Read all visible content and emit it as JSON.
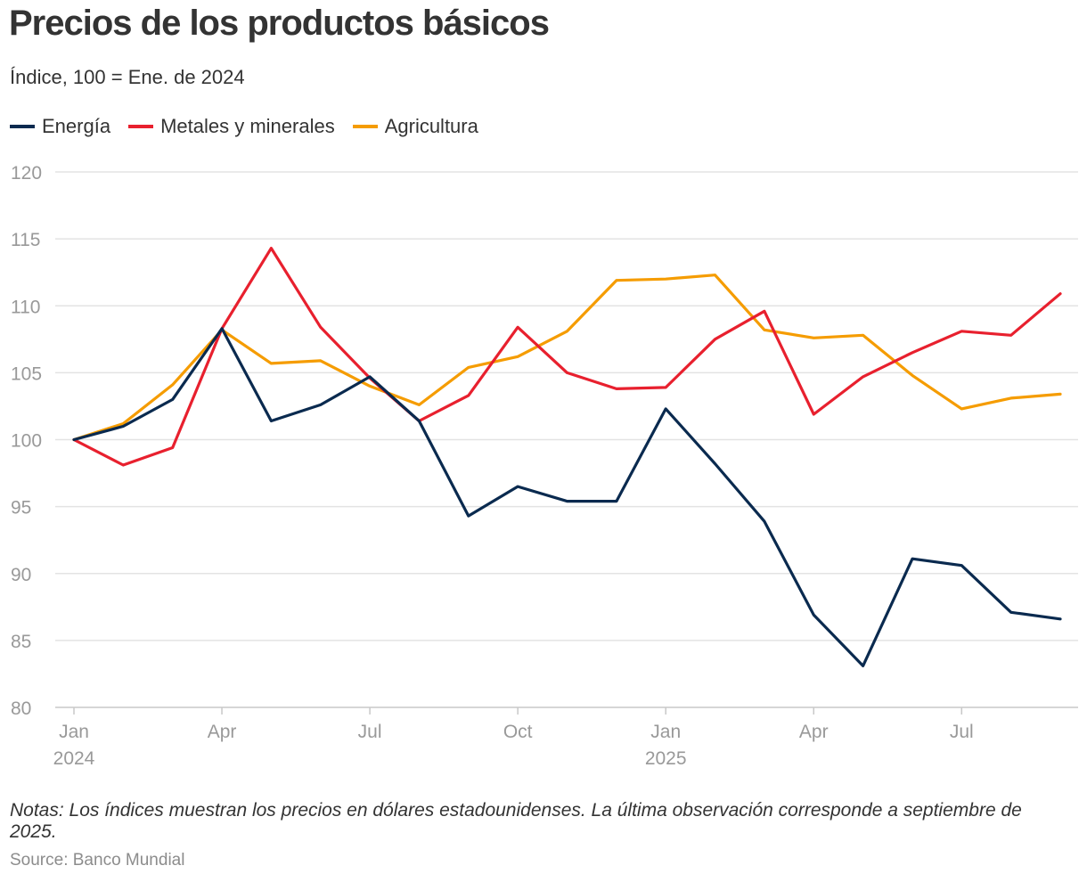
{
  "title": "Precios de los productos básicos",
  "subtitle": "Índice, 100 = Ene. de 2024",
  "notes": "Notas: Los índices muestran los precios en dólares estadounidenses. La última observación corresponde a septiembre de 2025.",
  "source": "Source: Banco Mundial",
  "chart_data": {
    "type": "line",
    "title": "Precios de los productos básicos",
    "ylabel": "Índice, 100 = Ene. de 2024",
    "xlabel": "",
    "ylim": [
      80,
      120
    ],
    "yticks": [
      80,
      85,
      90,
      95,
      100,
      105,
      110,
      115,
      120
    ],
    "grid": true,
    "legend_position": "top-left",
    "x": [
      "2024-01",
      "2024-02",
      "2024-03",
      "2024-04",
      "2024-05",
      "2024-06",
      "2024-07",
      "2024-08",
      "2024-09",
      "2024-10",
      "2024-11",
      "2024-12",
      "2025-01",
      "2025-02",
      "2025-03",
      "2025-04",
      "2025-05",
      "2025-06",
      "2025-07",
      "2025-08",
      "2025-09"
    ],
    "xtick_labels": [
      {
        "index": 0,
        "month": "Jan",
        "year": "2024"
      },
      {
        "index": 3,
        "month": "Apr",
        "year": ""
      },
      {
        "index": 6,
        "month": "Jul",
        "year": ""
      },
      {
        "index": 9,
        "month": "Oct",
        "year": ""
      },
      {
        "index": 12,
        "month": "Jan",
        "year": "2025"
      },
      {
        "index": 15,
        "month": "Apr",
        "year": ""
      },
      {
        "index": 18,
        "month": "Jul",
        "year": ""
      }
    ],
    "series": [
      {
        "name": "Energía",
        "color": "#0a2a4f",
        "values": [
          100,
          101,
          103,
          108.3,
          101.4,
          102.6,
          104.7,
          101.4,
          94.3,
          96.5,
          95.4,
          95.4,
          102.3,
          98.2,
          93.9,
          86.9,
          83.1,
          91.1,
          90.6,
          87.1,
          86.6
        ]
      },
      {
        "name": "Metales y minerales",
        "color": "#e8202e",
        "values": [
          100,
          98.1,
          99.4,
          108.3,
          114.3,
          108.4,
          104.6,
          101.4,
          103.3,
          108.4,
          105.0,
          103.8,
          103.9,
          107.5,
          109.6,
          101.9,
          104.7,
          106.5,
          108.1,
          107.8,
          110.9
        ]
      },
      {
        "name": "Agricultura",
        "color": "#f59c00",
        "values": [
          100,
          101.2,
          104.1,
          108.2,
          105.7,
          105.9,
          104.0,
          102.6,
          105.4,
          106.2,
          108.1,
          111.9,
          112.0,
          112.3,
          108.2,
          107.6,
          107.8,
          104.8,
          102.3,
          103.1,
          103.4
        ]
      }
    ]
  }
}
